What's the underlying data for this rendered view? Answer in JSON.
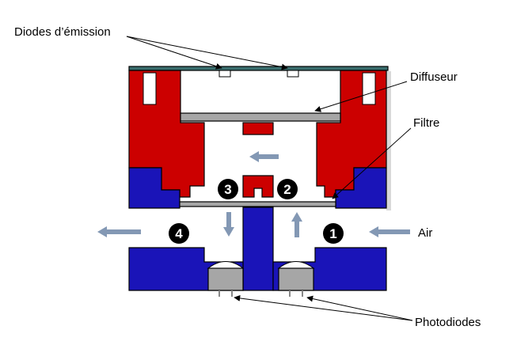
{
  "labels": {
    "diodes_emission": "Diodes d’émission",
    "diffuseur": "Diffuseur",
    "filtre": "Filtre",
    "air": "Air",
    "photodiodes": "Photodiodes"
  },
  "markers": [
    "1",
    "2",
    "3",
    "4"
  ],
  "colors": {
    "red": "#cc0000",
    "blue": "#1a14b8",
    "arrow": "#8398b4",
    "gray": "#a6a6a6",
    "outline": "#000000"
  }
}
